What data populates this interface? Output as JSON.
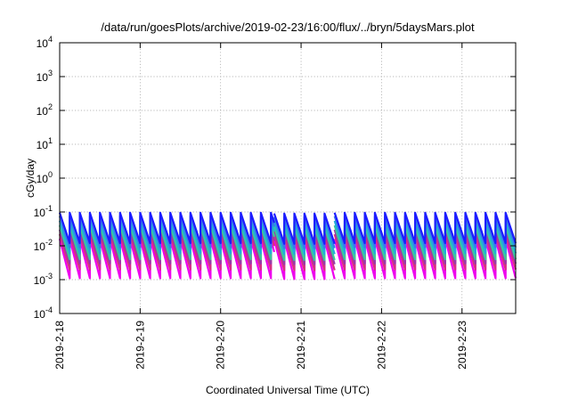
{
  "chart_data": {
    "type": "line",
    "title": "/data/run/goesPlots/archive/2019-02-23/16:00/flux/../bryn/5daysMars.plot",
    "xlabel": "Coordinated Universal Time (UTC)",
    "ylabel": "cGy/day",
    "yscale": "log",
    "ylim": [
      0.0001,
      10000
    ],
    "xlim": [
      "2019-02-18 00:00",
      "2019-02-23 16:00"
    ],
    "grid": true,
    "y_ticks": [
      {
        "base": "10",
        "exp": "4"
      },
      {
        "base": "10",
        "exp": "3"
      },
      {
        "base": "10",
        "exp": "2"
      },
      {
        "base": "10",
        "exp": "1"
      },
      {
        "base": "10",
        "exp": "0"
      },
      {
        "base": "10",
        "exp": "-1"
      },
      {
        "base": "10",
        "exp": "-2"
      },
      {
        "base": "10",
        "exp": "-3"
      },
      {
        "base": "10",
        "exp": "-4"
      }
    ],
    "x_ticks": [
      "2019-2-18",
      "2019-2-19",
      "2019-2-20",
      "2019-2-21",
      "2019-2-22",
      "2019-2-23"
    ],
    "sawtooth_period_hours": 3,
    "series": [
      {
        "color": "#1c1cff",
        "peak": 0.095,
        "trough": 0.012
      },
      {
        "color": "#3a7ae8",
        "peak": 0.075,
        "trough": 0.009
      },
      {
        "color": "#20b0d8",
        "peak": 0.055,
        "trough": 0.006
      },
      {
        "color": "#3cc89a",
        "peak": 0.04,
        "trough": 0.004
      },
      {
        "color": "#9a3aa8",
        "peak": 0.03,
        "trough": 0.003
      },
      {
        "color": "#d83080",
        "peak": 0.022,
        "trough": 0.002
      },
      {
        "color": "#ee00ee",
        "peak": 0.016,
        "trough": 0.0011
      }
    ],
    "segments": [
      {
        "start": "2019-02-18 00:00",
        "end": "2019-02-20 16:00",
        "scale": 1.0
      },
      {
        "start": "2019-02-20 16:00",
        "end": "2019-02-21 10:00",
        "scale": 0.95
      },
      {
        "start": "2019-02-21 10:00",
        "end": "2019-02-23 16:00",
        "scale": 1.0
      }
    ]
  }
}
